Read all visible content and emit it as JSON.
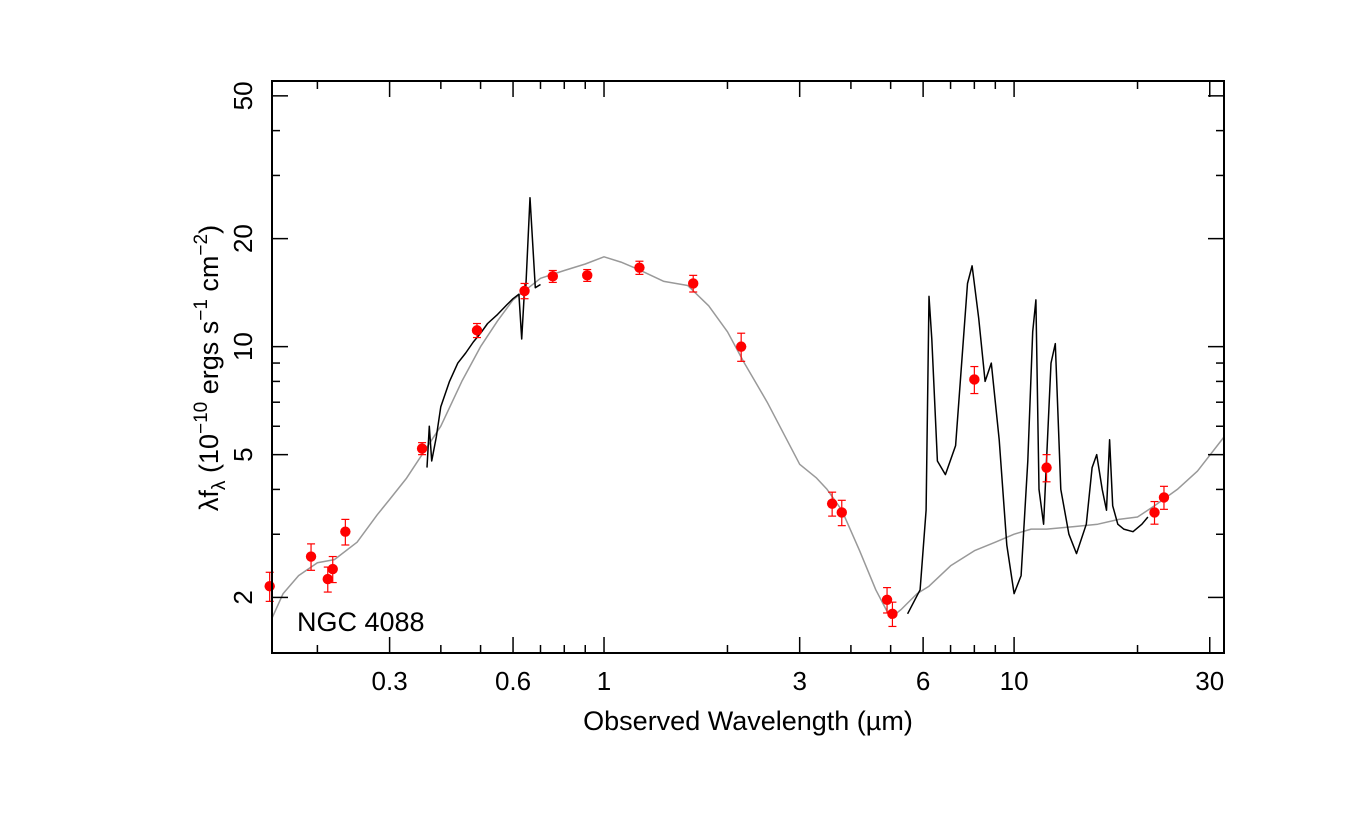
{
  "chart_data": {
    "type": "scatter",
    "title": "",
    "xlabel": "Observed Wavelength (µm)",
    "ylabel": {
      "main": "λf",
      "sub": "λ",
      "open": " (10",
      "exp1": "−10",
      "mid1": " ergs s",
      "exp2": "−1",
      "mid2": " cm",
      "exp3": "−2",
      "close": ")"
    },
    "annotation": "NGC 4088",
    "x_scale": "log",
    "y_scale": "log",
    "xlim": [
      0.155,
      32.5
    ],
    "ylim": [
      1.4,
      55
    ],
    "x_ticks": [
      {
        "value": 0.3,
        "label": "0.3"
      },
      {
        "value": 0.6,
        "label": "0.6"
      },
      {
        "value": 1,
        "label": "1"
      },
      {
        "value": 3,
        "label": "3"
      },
      {
        "value": 6,
        "label": "6"
      },
      {
        "value": 10,
        "label": "10"
      },
      {
        "value": 30,
        "label": "30"
      }
    ],
    "y_ticks": [
      {
        "value": 2,
        "label": "2"
      },
      {
        "value": 5,
        "label": "5"
      },
      {
        "value": 10,
        "label": "10"
      },
      {
        "value": 20,
        "label": "20"
      },
      {
        "value": 50,
        "label": "50"
      }
    ],
    "colors": {
      "model": "#999999",
      "observed": "#000000",
      "photometry": "#ff0000"
    },
    "series": [
      {
        "kind": "model-sed",
        "x": [
          0.155,
          0.165,
          0.18,
          0.2,
          0.22,
          0.25,
          0.28,
          0.3,
          0.33,
          0.36,
          0.4,
          0.45,
          0.5,
          0.55,
          0.6,
          0.65,
          0.7,
          0.8,
          0.9,
          1.0,
          1.1,
          1.2,
          1.4,
          1.6,
          1.8,
          2.0,
          2.2,
          2.5,
          3.0,
          3.3,
          3.5,
          3.8,
          4.2,
          4.6,
          5.0,
          5.3,
          5.8,
          6.2,
          7.0,
          8.0,
          9.0,
          10.0,
          11.0,
          12.0,
          14.0,
          16.0,
          18.0,
          20.0,
          22.0,
          25.0,
          28.0,
          32.5
        ],
        "y": [
          1.75,
          2.05,
          2.3,
          2.5,
          2.55,
          2.85,
          3.4,
          3.75,
          4.3,
          5.0,
          6.0,
          8.0,
          10.0,
          11.8,
          13.5,
          14.5,
          15.5,
          16.3,
          17.0,
          17.8,
          17.2,
          16.5,
          15.2,
          14.8,
          13.0,
          11.0,
          9.0,
          7.0,
          4.7,
          4.3,
          4.0,
          3.5,
          2.7,
          2.1,
          1.75,
          1.85,
          2.05,
          2.15,
          2.45,
          2.7,
          2.85,
          3.0,
          3.1,
          3.1,
          3.15,
          3.2,
          3.3,
          3.35,
          3.6,
          4.0,
          4.5,
          5.6
        ]
      },
      {
        "kind": "observed-optical",
        "x": [
          0.37,
          0.375,
          0.38,
          0.39,
          0.4,
          0.42,
          0.44,
          0.46,
          0.48,
          0.5,
          0.52,
          0.55,
          0.58,
          0.6,
          0.62,
          0.63,
          0.64,
          0.645,
          0.66,
          0.68,
          0.7
        ],
        "y": [
          4.6,
          6.0,
          4.8,
          5.6,
          6.8,
          8.0,
          9.0,
          9.6,
          10.3,
          10.9,
          11.6,
          12.3,
          13.1,
          13.6,
          14.0,
          10.5,
          14.4,
          14.8,
          26.0,
          14.6,
          14.9
        ]
      },
      {
        "kind": "observed-ir",
        "x": [
          5.5,
          5.9,
          6.1,
          6.2,
          6.3,
          6.5,
          6.8,
          7.2,
          7.7,
          7.9,
          8.2,
          8.5,
          8.8,
          9.2,
          9.6,
          10.0,
          10.4,
          10.8,
          11.1,
          11.3,
          11.5,
          11.8,
          12.3,
          12.6,
          13.0,
          13.6,
          14.2,
          15.0,
          15.5,
          15.9,
          16.4,
          16.8,
          17.1,
          17.4,
          17.9,
          18.5,
          19.5,
          20.5,
          21.2
        ],
        "y": [
          1.8,
          2.1,
          3.5,
          13.8,
          10.5,
          4.8,
          4.4,
          5.3,
          15.0,
          16.8,
          12.0,
          8.0,
          9.0,
          5.5,
          2.8,
          2.05,
          2.3,
          4.8,
          11.0,
          13.5,
          4.0,
          3.2,
          9.0,
          10.2,
          4.0,
          3.0,
          2.65,
          3.2,
          4.6,
          5.0,
          4.0,
          3.5,
          5.5,
          3.6,
          3.2,
          3.1,
          3.05,
          3.2,
          3.35
        ]
      },
      {
        "kind": "photometry",
        "x": [
          0.153,
          0.193,
          0.212,
          0.218,
          0.234,
          0.36,
          0.49,
          0.64,
          0.75,
          0.91,
          1.22,
          1.65,
          2.16,
          3.6,
          3.8,
          4.9,
          5.05,
          8.0,
          12.0,
          22.0,
          23.2
        ],
        "y": [
          2.15,
          2.6,
          2.25,
          2.4,
          3.05,
          5.2,
          11.1,
          14.3,
          15.7,
          15.8,
          16.6,
          15.0,
          10.0,
          3.65,
          3.45,
          1.97,
          1.8,
          8.1,
          4.6,
          3.45,
          3.8
        ],
        "err": [
          0.2,
          0.22,
          0.18,
          0.2,
          0.25,
          0.2,
          0.5,
          0.7,
          0.6,
          0.6,
          0.7,
          0.8,
          0.9,
          0.28,
          0.28,
          0.16,
          0.14,
          0.7,
          0.4,
          0.25,
          0.28
        ]
      }
    ]
  }
}
